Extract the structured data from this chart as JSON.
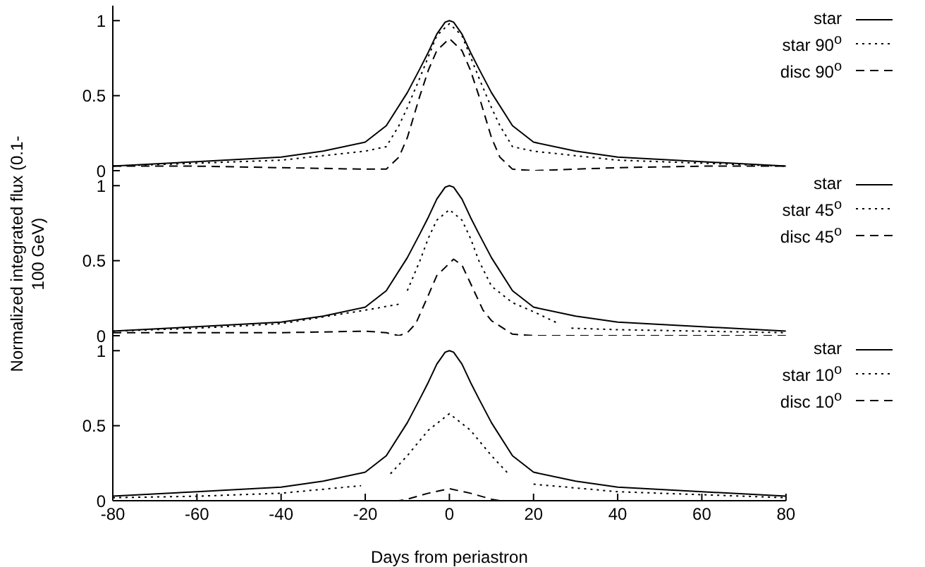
{
  "chart_data": [
    {
      "type": "line",
      "tick_labels": "y",
      "xlim": [
        -80,
        80
      ],
      "xticks": [
        -80,
        -60,
        -40,
        -20,
        0,
        20,
        40,
        60,
        80
      ],
      "ylim": [
        0,
        1.1
      ],
      "yticks": [
        0,
        0.5,
        1
      ],
      "legend": "top right",
      "series": [
        {
          "name": "star",
          "color": "#000000",
          "line_style": "solid",
          "x": [
            -80,
            -60,
            -40,
            -30,
            -20,
            -15,
            -10,
            -7,
            -5,
            -3,
            -1,
            0,
            1,
            3,
            5,
            7,
            10,
            15,
            20,
            30,
            40,
            60,
            80
          ],
          "values": [
            0.03,
            0.06,
            0.09,
            0.13,
            0.19,
            0.3,
            0.52,
            0.68,
            0.79,
            0.91,
            0.99,
            1,
            0.99,
            0.91,
            0.79,
            0.68,
            0.52,
            0.3,
            0.19,
            0.13,
            0.09,
            0.06,
            0.03
          ]
        },
        {
          "name": "star 90$^{o}$",
          "color": "#000000",
          "line_style": "dotted",
          "x": [
            -80,
            -60,
            -40,
            -20,
            -15,
            -12,
            -10,
            -7,
            -5,
            -3,
            0,
            3,
            5,
            7,
            10,
            12,
            15,
            20,
            40,
            60,
            80
          ],
          "values": [
            0.03,
            0.05,
            0.07,
            0.13,
            0.16,
            0.3,
            0.42,
            0.62,
            0.76,
            0.9,
            0.98,
            0.9,
            0.76,
            0.62,
            0.42,
            0.3,
            0.16,
            0.13,
            0.07,
            0.05,
            0.03
          ]
        },
        {
          "name": "disc 90$^{o}$",
          "color": "#000000",
          "line_style": "dashed",
          "x": [
            -80,
            -60,
            -40,
            -20,
            -15,
            -12,
            -10,
            -7,
            -5,
            -3,
            0,
            3,
            5,
            7,
            10,
            12,
            15,
            20,
            40,
            60,
            80
          ],
          "values": [
            0.03,
            0.03,
            0.02,
            0.01,
            0.01,
            0.09,
            0.22,
            0.5,
            0.67,
            0.8,
            0.88,
            0.8,
            0.67,
            0.5,
            0.22,
            0.09,
            0.01,
            0,
            0.02,
            0.03,
            0.03
          ]
        }
      ]
    },
    {
      "type": "line",
      "tick_labels": "y",
      "ylabel": "Normalized integrated flux (0.1-100 GeV)",
      "xlim": [
        -80,
        80
      ],
      "xticks": [
        -80,
        -60,
        -40,
        -20,
        0,
        20,
        40,
        60,
        80
      ],
      "ylim": [
        0,
        1.1
      ],
      "yticks": [
        0,
        0.5,
        1
      ],
      "legend": "top right",
      "series": [
        {
          "name": "star",
          "color": "#000000",
          "line_style": "solid",
          "x": [
            -80,
            -60,
            -40,
            -30,
            -20,
            -15,
            -10,
            -7,
            -5,
            -3,
            -1,
            0,
            1,
            3,
            5,
            7,
            10,
            15,
            20,
            30,
            40,
            60,
            80
          ],
          "values": [
            0.03,
            0.06,
            0.09,
            0.13,
            0.19,
            0.3,
            0.52,
            0.68,
            0.79,
            0.91,
            0.99,
            1,
            0.99,
            0.91,
            0.79,
            0.68,
            0.52,
            0.3,
            0.19,
            0.13,
            0.09,
            0.06,
            0.03
          ]
        },
        {
          "name": "star 45$^{o}$",
          "color": "#000000",
          "line_style": "dotted",
          "x": [
            -80,
            -60,
            -40,
            -20,
            -12,
            -11,
            -10,
            -7,
            -5,
            -3,
            0,
            3,
            5,
            7,
            10,
            15,
            20,
            26,
            27,
            29,
            40,
            60,
            80
          ],
          "values": [
            0.03,
            0.05,
            0.08,
            0.17,
            0.21,
            null,
            0.3,
            0.5,
            0.65,
            0.77,
            0.84,
            0.77,
            0.65,
            0.5,
            0.33,
            0.22,
            0.16,
            0.08,
            null,
            0.05,
            0.04,
            0.03,
            0.02
          ]
        },
        {
          "name": "disc 45$^{o}$",
          "color": "#000000",
          "line_style": "dashed",
          "x": [
            -80,
            -60,
            -40,
            -20,
            -15,
            -12,
            -10,
            -8,
            -5,
            -3,
            1,
            3,
            5,
            8,
            10,
            15,
            20,
            40,
            60,
            80
          ],
          "values": [
            0.02,
            0.02,
            0.02,
            0.03,
            0.02,
            0,
            0.02,
            0.08,
            0.27,
            0.4,
            0.51,
            0.47,
            0.35,
            0.17,
            0.1,
            0.01,
            0,
            0,
            0,
            0
          ]
        }
      ]
    },
    {
      "type": "line",
      "xlabel": "Days from periastron",
      "xlim": [
        -80,
        80
      ],
      "xticks": [
        -80,
        -60,
        -40,
        -20,
        0,
        20,
        40,
        60,
        80
      ],
      "ylim": [
        0,
        1.1
      ],
      "yticks": [
        0,
        0.5,
        1
      ],
      "legend": "top right",
      "series": [
        {
          "name": "star",
          "color": "#000000",
          "line_style": "solid",
          "x": [
            -80,
            -60,
            -40,
            -30,
            -20,
            -15,
            -10,
            -7,
            -5,
            -3,
            -1,
            0,
            1,
            3,
            5,
            7,
            10,
            15,
            20,
            30,
            40,
            60,
            80
          ],
          "values": [
            0.03,
            0.06,
            0.09,
            0.13,
            0.19,
            0.3,
            0.52,
            0.68,
            0.79,
            0.91,
            0.99,
            1,
            0.99,
            0.91,
            0.79,
            0.68,
            0.52,
            0.3,
            0.19,
            0.13,
            0.09,
            0.06,
            0.03
          ]
        },
        {
          "name": "star 10$^{o}$",
          "color": "#000000",
          "line_style": "dotted",
          "x": [
            -80,
            -60,
            -40,
            -21,
            -17,
            -14,
            -10,
            -5,
            0,
            5,
            10,
            14,
            17,
            20,
            40,
            60,
            80
          ],
          "values": [
            0.02,
            0.03,
            0.05,
            0.1,
            null,
            0.18,
            0.3,
            0.47,
            0.58,
            0.47,
            0.3,
            0.18,
            null,
            0.11,
            0.06,
            0.04,
            0.02
          ]
        },
        {
          "name": "disc 10$^{o}$",
          "color": "#000000",
          "line_style": "dashed",
          "x": [
            -80,
            -40,
            -12,
            -10,
            -5,
            0,
            5,
            10,
            12,
            40,
            80
          ],
          "values": [
            0,
            0,
            0,
            0.01,
            0.05,
            0.08,
            0.05,
            0.01,
            0,
            0,
            0
          ]
        }
      ]
    }
  ]
}
